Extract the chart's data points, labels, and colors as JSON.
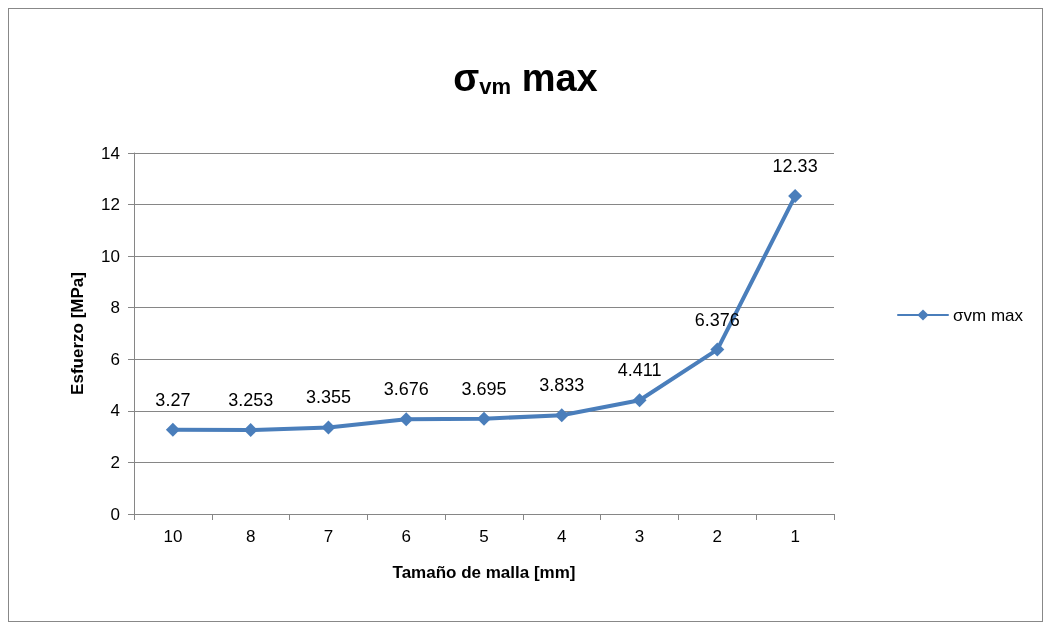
{
  "chart_data": {
    "type": "line",
    "title": "σ$_{vm}$ max",
    "xlabel": "Tamaño de malla [mm]",
    "ylabel": "Esfuerzo [MPa]",
    "categories": [
      "10",
      "8",
      "7",
      "6",
      "5",
      "4",
      "3",
      "2",
      "1"
    ],
    "series": [
      {
        "name": "σvm max",
        "color": "#4a7ebb",
        "values": [
          3.27,
          3.253,
          3.355,
          3.676,
          3.695,
          3.833,
          4.411,
          6.376,
          12.33
        ]
      }
    ],
    "ylim": [
      0,
      14
    ],
    "yticks": [
      0,
      2,
      4,
      6,
      8,
      10,
      12,
      14
    ],
    "grid": "y",
    "legend": "right",
    "marker": "diamond",
    "line_style": "solid",
    "data_labels": true
  }
}
